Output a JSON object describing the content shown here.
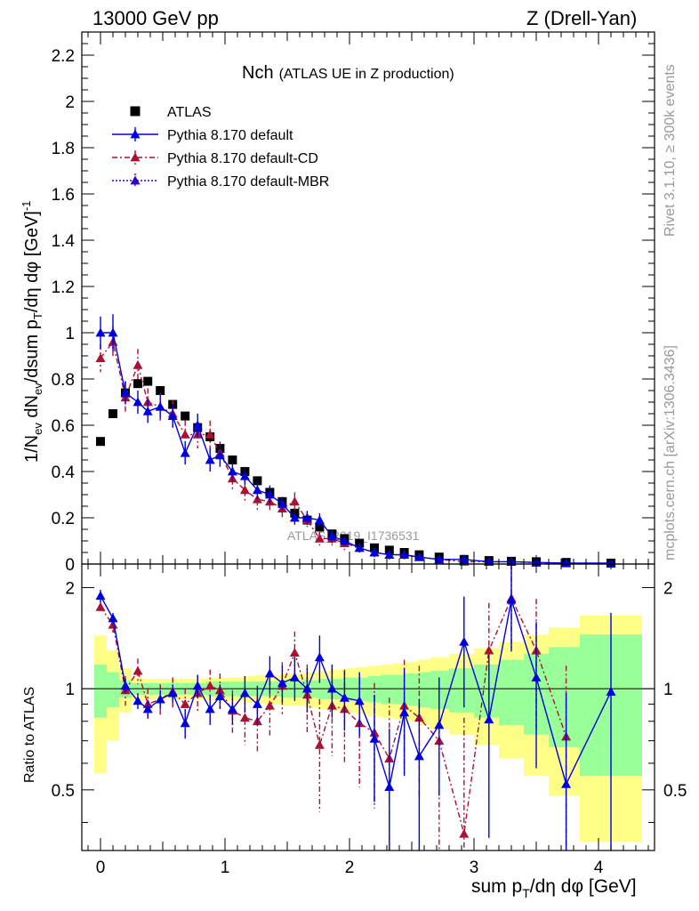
{
  "header": {
    "left": "13000 GeV pp",
    "right": "Z (Drell-Yan)"
  },
  "side": {
    "rivet": "Rivet 3.1.10, ≥ 300k events",
    "mcplots": "mcplots.cern.ch [arXiv:1306.3436]"
  },
  "watermark": "ATLAS_2019_I1736531",
  "colors": {
    "atlas": "#000000",
    "default": "#0000dd",
    "cd": "#aa1133",
    "mbr": "#3300bb",
    "band_stat": "#99ff99",
    "band_tot": "#ffff88"
  },
  "chart_data": [
    {
      "type": "scatter",
      "title_main": "Nch",
      "title_sub": "(ATLAS UE in Z production)",
      "ylabel": "1/N_ev dN_ev/dsum p_T/dη dφ [GeV]^-1",
      "xlim": [
        -0.15,
        4.45
      ],
      "ylim": [
        0,
        2.3
      ],
      "yticks": [
        0,
        0.2,
        0.4,
        0.6,
        0.8,
        1,
        1.2,
        1.4,
        1.6,
        1.8,
        2,
        2.2
      ],
      "ytick_labels": [
        "0",
        "0.2",
        "0.4",
        "0.6",
        "0.8",
        "1",
        "1.2",
        "1.4",
        "1.6",
        "1.8",
        "2",
        "2.2"
      ],
      "legend": [
        {
          "label": "ATLAS",
          "style": "square"
        },
        {
          "label": "Pythia 8.170 default",
          "style": "solid"
        },
        {
          "label": "Pythia 8.170 default-CD",
          "style": "dashdot"
        },
        {
          "label": "Pythia 8.170 default-MBR",
          "style": "dotted"
        }
      ],
      "series": [
        {
          "name": "ATLAS",
          "x": [
            0.0,
            0.1,
            0.2,
            0.3,
            0.38,
            0.48,
            0.58,
            0.68,
            0.78,
            0.88,
            0.96,
            1.06,
            1.16,
            1.26,
            1.36,
            1.46,
            1.56,
            1.66,
            1.76,
            1.86,
            1.96,
            2.08,
            2.2,
            2.32,
            2.44,
            2.56,
            2.72,
            2.92,
            3.12,
            3.3,
            3.5,
            3.74,
            4.1
          ],
          "y": [
            0.53,
            0.65,
            0.74,
            0.78,
            0.79,
            0.75,
            0.69,
            0.64,
            0.59,
            0.55,
            0.5,
            0.45,
            0.4,
            0.36,
            0.31,
            0.27,
            0.22,
            0.19,
            0.16,
            0.13,
            0.11,
            0.09,
            0.07,
            0.06,
            0.05,
            0.04,
            0.03,
            0.02,
            0.015,
            0.012,
            0.01,
            0.007,
            0.004
          ]
        },
        {
          "name": "Pythia 8.170 default",
          "x": [
            0.0,
            0.1,
            0.2,
            0.3,
            0.38,
            0.48,
            0.58,
            0.68,
            0.78,
            0.88,
            0.96,
            1.06,
            1.16,
            1.26,
            1.36,
            1.46,
            1.56,
            1.66,
            1.76,
            1.86,
            1.96,
            2.08,
            2.2,
            2.32,
            2.44,
            2.56,
            2.72,
            2.92,
            3.12,
            3.3,
            3.5,
            3.74,
            4.1
          ],
          "y": [
            1.0,
            1.0,
            0.74,
            0.7,
            0.66,
            0.68,
            0.64,
            0.48,
            0.6,
            0.45,
            0.47,
            0.4,
            0.38,
            0.32,
            0.3,
            0.26,
            0.2,
            0.2,
            0.19,
            0.12,
            0.1,
            0.07,
            0.05,
            0.04,
            0.04,
            0.03,
            0.02,
            0.02,
            0.01,
            0.01,
            0.007,
            0.004,
            0.004
          ],
          "err": [
            0.07,
            0.08,
            0.05,
            0.05,
            0.05,
            0.05,
            0.05,
            0.05,
            0.05,
            0.05,
            0.05,
            0.04,
            0.04,
            0.04,
            0.04,
            0.03,
            0.03,
            0.03,
            0.03,
            0.03,
            0.02,
            0.02,
            0.02,
            0.02,
            0.01,
            0.01,
            0.01,
            0.01,
            0.005,
            0.005,
            0.005,
            0.003,
            0.003
          ]
        },
        {
          "name": "Pythia 8.170 default-CD",
          "x": [
            0.0,
            0.1,
            0.2,
            0.3,
            0.38,
            0.48,
            0.58,
            0.68,
            0.78,
            0.88,
            0.96,
            1.06,
            1.16,
            1.26,
            1.36,
            1.46,
            1.56,
            1.66,
            1.76,
            1.86,
            1.96,
            2.08,
            2.2,
            2.32,
            2.44,
            2.56,
            2.72,
            2.92,
            3.12,
            3.3,
            3.5,
            3.74
          ],
          "y": [
            0.89,
            0.96,
            0.72,
            0.86,
            0.7,
            0.68,
            0.65,
            0.56,
            0.56,
            0.56,
            0.48,
            0.37,
            0.32,
            0.28,
            0.27,
            0.24,
            0.27,
            0.19,
            0.11,
            0.11,
            0.09,
            0.07,
            0.05,
            0.04,
            0.04,
            0.03,
            0.02,
            0.01,
            0.01,
            0.01,
            0.006,
            0.003
          ],
          "err": [
            0.06,
            0.07,
            0.07,
            0.07,
            0.06,
            0.06,
            0.06,
            0.06,
            0.06,
            0.06,
            0.05,
            0.05,
            0.05,
            0.05,
            0.04,
            0.04,
            0.04,
            0.03,
            0.03,
            0.03,
            0.03,
            0.02,
            0.02,
            0.02,
            0.02,
            0.01,
            0.01,
            0.01,
            0.01,
            0.005,
            0.004,
            0.003
          ]
        }
      ]
    },
    {
      "type": "scatter",
      "ylabel": "Ratio to ATLAS",
      "xlabel": "sum p_T/dη dφ [GeV]",
      "xlim": [
        -0.15,
        4.45
      ],
      "ylim": [
        0.33,
        2.35
      ],
      "yticks": [
        0.5,
        1,
        2
      ],
      "ytick_labels": [
        "0.5",
        "1",
        "2"
      ],
      "xticks": [
        0,
        1,
        2,
        3,
        4
      ],
      "xtick_labels": [
        "0",
        "1",
        "2",
        "3",
        "4"
      ],
      "bands": {
        "edges": [
          -0.05,
          0.05,
          0.15,
          0.25,
          0.35,
          0.45,
          0.55,
          0.65,
          0.75,
          0.85,
          0.95,
          1.05,
          1.15,
          1.25,
          1.35,
          1.45,
          1.55,
          1.65,
          1.75,
          1.85,
          1.95,
          2.05,
          2.15,
          2.25,
          2.35,
          2.45,
          2.55,
          2.65,
          2.8,
          3.0,
          3.2,
          3.4,
          3.6,
          3.85,
          4.35
        ],
        "stat": [
          0.18,
          0.12,
          0.06,
          0.04,
          0.04,
          0.04,
          0.04,
          0.04,
          0.04,
          0.05,
          0.05,
          0.05,
          0.05,
          0.05,
          0.05,
          0.06,
          0.06,
          0.06,
          0.07,
          0.07,
          0.08,
          0.08,
          0.09,
          0.1,
          0.1,
          0.11,
          0.12,
          0.13,
          0.15,
          0.18,
          0.22,
          0.27,
          0.33,
          0.45
        ],
        "tot": [
          0.44,
          0.3,
          0.15,
          0.08,
          0.07,
          0.07,
          0.07,
          0.07,
          0.07,
          0.08,
          0.08,
          0.08,
          0.09,
          0.1,
          0.1,
          0.11,
          0.11,
          0.12,
          0.13,
          0.14,
          0.15,
          0.16,
          0.17,
          0.18,
          0.19,
          0.2,
          0.22,
          0.24,
          0.27,
          0.32,
          0.38,
          0.45,
          0.52,
          0.65
        ]
      },
      "series": [
        {
          "name": "Pythia 8.170 default",
          "x": [
            0.0,
            0.1,
            0.2,
            0.3,
            0.38,
            0.48,
            0.58,
            0.68,
            0.78,
            0.88,
            0.96,
            1.06,
            1.16,
            1.26,
            1.36,
            1.46,
            1.56,
            1.66,
            1.76,
            1.86,
            1.96,
            2.08,
            2.2,
            2.32,
            2.44,
            2.56,
            2.72,
            2.92,
            3.12,
            3.3,
            3.5,
            3.74,
            4.1
          ],
          "y": [
            1.89,
            1.62,
            1.02,
            0.92,
            0.87,
            0.93,
            0.97,
            0.79,
            1.02,
            0.87,
            0.95,
            0.87,
            0.97,
            0.9,
            1.11,
            1.04,
            1.08,
            1.0,
            1.24,
            1.0,
            0.94,
            0.92,
            0.71,
            0.51,
            0.85,
            0.63,
            0.78,
            1.38,
            0.81,
            1.84,
            1.08,
            0.52,
            0.98
          ],
          "err": [
            0.08,
            0.06,
            0.05,
            0.05,
            0.05,
            0.06,
            0.06,
            0.08,
            0.08,
            0.09,
            0.08,
            0.09,
            0.12,
            0.12,
            0.14,
            0.13,
            0.16,
            0.15,
            0.2,
            0.18,
            0.19,
            0.2,
            0.25,
            0.25,
            0.3,
            0.3,
            0.3,
            0.5,
            0.45,
            0.55,
            0.5,
            0.45,
            0.7
          ]
        },
        {
          "name": "Pythia 8.170 default-CD",
          "x": [
            0.0,
            0.1,
            0.2,
            0.3,
            0.38,
            0.48,
            0.58,
            0.68,
            0.78,
            0.88,
            0.96,
            1.06,
            1.16,
            1.26,
            1.36,
            1.46,
            1.56,
            1.66,
            1.76,
            1.86,
            1.96,
            2.08,
            2.2,
            2.32,
            2.44,
            2.56,
            2.72,
            2.92,
            3.12,
            3.3,
            3.5,
            3.74
          ],
          "y": [
            1.75,
            1.55,
            0.99,
            1.13,
            0.9,
            0.93,
            0.98,
            0.9,
            0.97,
            1.02,
            0.99,
            0.86,
            0.82,
            0.8,
            0.89,
            1.02,
            1.28,
            0.96,
            0.68,
            0.89,
            0.87,
            0.79,
            0.74,
            0.62,
            0.89,
            0.82,
            0.7,
            0.37,
            1.3,
            1.86,
            1.3,
            0.72
          ],
          "err": [
            0.07,
            0.08,
            0.1,
            0.1,
            0.1,
            0.1,
            0.1,
            0.1,
            0.12,
            0.12,
            0.12,
            0.13,
            0.14,
            0.15,
            0.17,
            0.18,
            0.2,
            0.22,
            0.25,
            0.26,
            0.27,
            0.28,
            0.3,
            0.32,
            0.33,
            0.35,
            0.38,
            0.45,
            0.5,
            0.55,
            0.55,
            0.45
          ]
        }
      ]
    }
  ]
}
